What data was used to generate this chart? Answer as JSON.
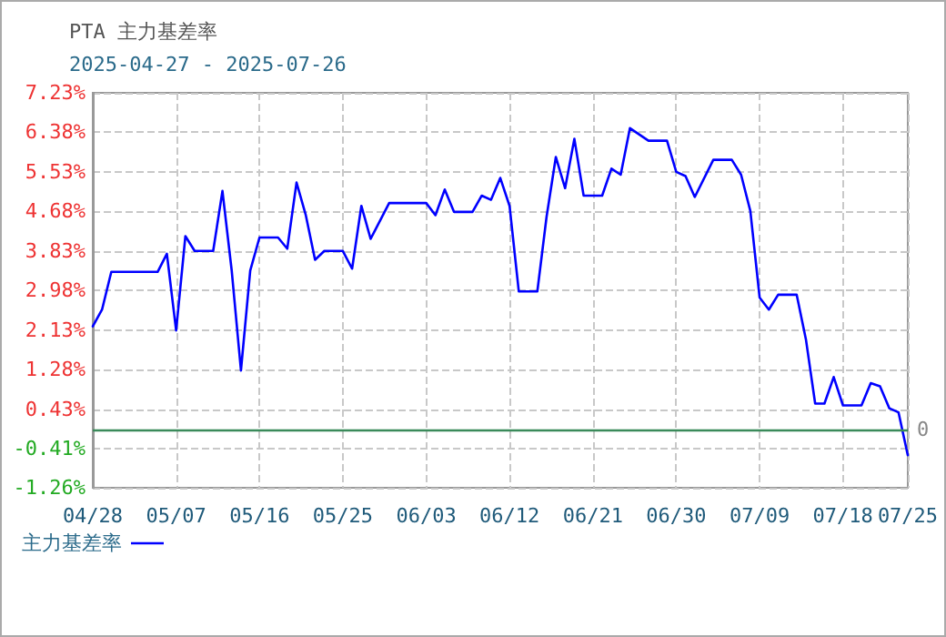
{
  "chart_data": {
    "type": "line",
    "title": "PTA 主力基差率",
    "subtitle": "2025-04-27 - 2025-07-26",
    "x": [
      "2025-04-28",
      "2025-04-29",
      "2025-04-30",
      "2025-05-05",
      "2025-05-06",
      "2025-05-07",
      "2025-05-08",
      "2025-05-09",
      "2025-05-11",
      "2025-05-12",
      "2025-05-13",
      "2025-05-14",
      "2025-05-15",
      "2025-05-16",
      "2025-05-18",
      "2025-05-19",
      "2025-05-20",
      "2025-05-21",
      "2025-05-22",
      "2025-05-23",
      "2025-05-25",
      "2025-05-26",
      "2025-05-27",
      "2025-05-28",
      "2025-05-30",
      "2025-06-03",
      "2025-06-04",
      "2025-06-05",
      "2025-06-06",
      "2025-06-08",
      "2025-06-09",
      "2025-06-10",
      "2025-06-11",
      "2025-06-12",
      "2025-06-13",
      "2025-06-15",
      "2025-06-16",
      "2025-06-17",
      "2025-06-18",
      "2025-06-19",
      "2025-06-20",
      "2025-06-22",
      "2025-06-23",
      "2025-06-24",
      "2025-06-25",
      "2025-06-27",
      "2025-06-29",
      "2025-06-30",
      "2025-07-01",
      "2025-07-02",
      "2025-07-04",
      "2025-07-06",
      "2025-07-07",
      "2025-07-08",
      "2025-07-09",
      "2025-07-10",
      "2025-07-11",
      "2025-07-13",
      "2025-07-14",
      "2025-07-15",
      "2025-07-16",
      "2025-07-17",
      "2025-07-18",
      "2025-07-20",
      "2025-07-21",
      "2025-07-22",
      "2025-07-23",
      "2025-07-24",
      "2025-07-25"
    ],
    "series": [
      {
        "name": "主力基差率",
        "color": "#0000ff",
        "values": [
          2.21,
          2.57,
          3.38,
          3.38,
          3.77,
          2.12,
          4.15,
          3.83,
          3.83,
          5.12,
          3.41,
          1.26,
          3.41,
          4.12,
          4.12,
          3.88,
          5.3,
          4.6,
          3.64,
          3.83,
          3.83,
          3.45,
          4.8,
          4.09,
          4.86,
          4.86,
          4.6,
          5.15,
          4.67,
          4.67,
          5.02,
          4.93,
          5.4,
          4.8,
          2.96,
          2.96,
          4.57,
          5.85,
          5.18,
          6.24,
          5.02,
          5.02,
          5.6,
          5.47,
          6.47,
          6.2,
          6.2,
          5.53,
          5.44,
          4.99,
          5.79,
          5.79,
          5.47,
          4.69,
          2.83,
          2.57,
          2.89,
          2.89,
          1.93,
          0.55,
          0.55,
          1.12,
          0.51,
          0.51,
          0.99,
          0.92,
          0.45,
          0.36,
          -0.56
        ]
      }
    ],
    "xlim": [
      "2025-04-28",
      "2025-07-25"
    ],
    "xticks": [
      {
        "value": "2025-04-28",
        "label": "04/28"
      },
      {
        "value": "2025-05-07",
        "label": "05/07"
      },
      {
        "value": "2025-05-16",
        "label": "05/16"
      },
      {
        "value": "2025-05-25",
        "label": "05/25"
      },
      {
        "value": "2025-06-03",
        "label": "06/03"
      },
      {
        "value": "2025-06-12",
        "label": "06/12"
      },
      {
        "value": "2025-06-21",
        "label": "06/21"
      },
      {
        "value": "2025-06-30",
        "label": "06/30"
      },
      {
        "value": "2025-07-09",
        "label": "07/09"
      },
      {
        "value": "2025-07-18",
        "label": "07/18"
      },
      {
        "value": "2025-07-25",
        "label": "07/25"
      }
    ],
    "ylim": [
      -1.26,
      7.23
    ],
    "yticks": [
      {
        "value": -1.26,
        "label": "-1.26%"
      },
      {
        "value": -0.41,
        "label": "-0.41%"
      },
      {
        "value": 0.43,
        "label": "0.43%"
      },
      {
        "value": 1.28,
        "label": "1.28%"
      },
      {
        "value": 2.13,
        "label": "2.13%"
      },
      {
        "value": 2.98,
        "label": "2.98%"
      },
      {
        "value": 3.83,
        "label": "3.83%"
      },
      {
        "value": 4.68,
        "label": "4.68%"
      },
      {
        "value": 5.53,
        "label": "5.53%"
      },
      {
        "value": 6.38,
        "label": "6.38%"
      },
      {
        "value": 7.23,
        "label": "7.23%"
      }
    ],
    "ref_lines": [
      {
        "axis": "y",
        "value": 0,
        "label": "0",
        "color": "#3a8a5a"
      }
    ],
    "grid": true,
    "legend": "bottom left",
    "marker": "none",
    "line_style": "solid"
  }
}
